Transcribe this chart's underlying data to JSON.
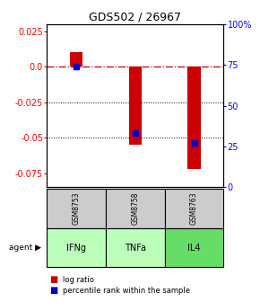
{
  "title": "GDS502 / 26967",
  "samples": [
    "GSM8753",
    "GSM8758",
    "GSM8763"
  ],
  "agents": [
    "IFNg",
    "TNFa",
    "IL4"
  ],
  "log_ratios": [
    0.01,
    -0.055,
    -0.072
  ],
  "percentile_ranks_pct": [
    74,
    33,
    27
  ],
  "ylim": [
    -0.085,
    0.03
  ],
  "y_left_ticks": [
    0.025,
    0.0,
    -0.025,
    -0.05,
    -0.075
  ],
  "y_right_ticks_pct": [
    100,
    75,
    50,
    25,
    0
  ],
  "bar_color": "#cc0000",
  "rank_color": "#0000cc",
  "sample_bg": "#cccccc",
  "agent_colors": [
    "#bbffbb",
    "#bbffbb",
    "#66dd66"
  ],
  "legend_bar_label": "log ratio",
  "legend_rank_label": "percentile rank within the sample",
  "title_fontsize": 9,
  "tick_fontsize": 7,
  "bar_width": 0.22
}
